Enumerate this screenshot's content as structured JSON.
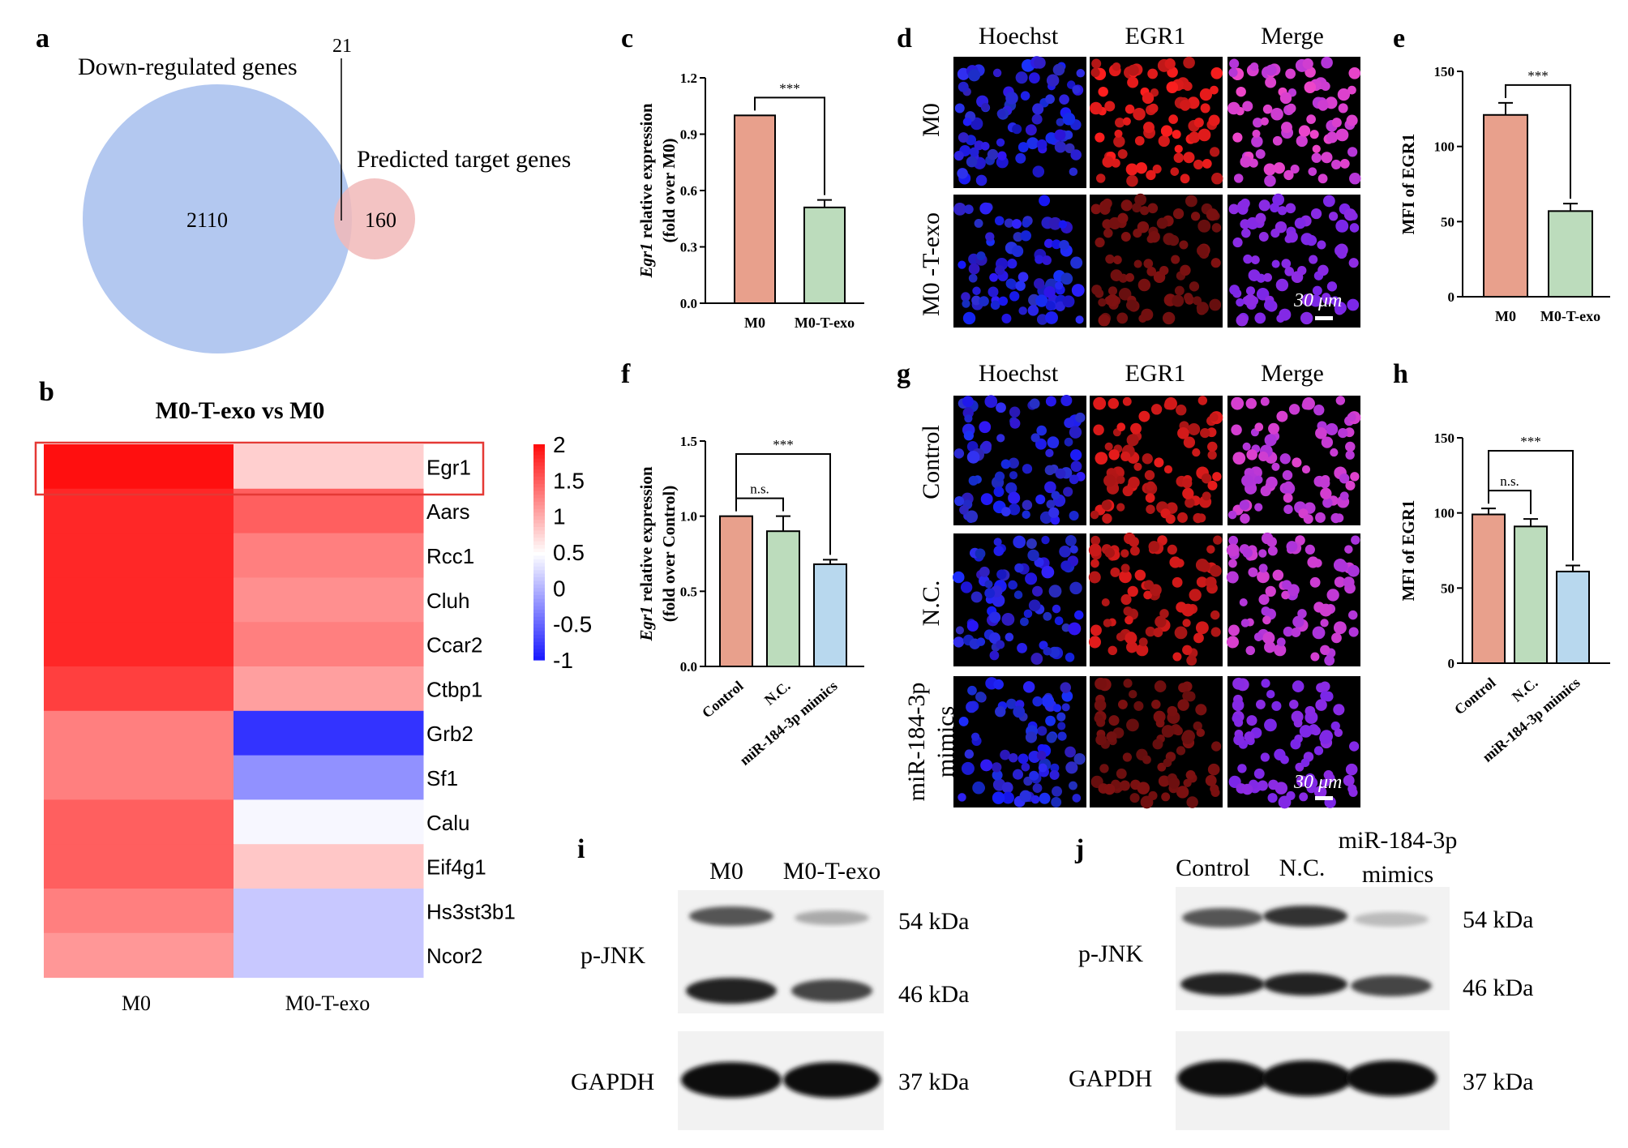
{
  "panel_letters": [
    "a",
    "b",
    "c",
    "d",
    "e",
    "f",
    "g",
    "h",
    "i",
    "j"
  ],
  "venn": {
    "left_label": "Down-regulated genes",
    "right_label": "Predicted target genes",
    "left_only": "2110",
    "overlap": "21",
    "right_only": "160",
    "left_color": "#b3c8f0",
    "right_color": "#f1b8b8"
  },
  "heatmap": {
    "title": "M0-T-exo vs M0",
    "columns": [
      "M0",
      "M0-T-exo"
    ],
    "genes": [
      "Egr1",
      "Aars",
      "Rcc1",
      "Cluh",
      "Ccar2",
      "Ctbp1",
      "Grb2",
      "Sf1",
      "Calu",
      "Eif4g1",
      "Hs3st3b1",
      "Ncor2"
    ],
    "values": [
      [
        2.0,
        0.8
      ],
      [
        1.85,
        1.5
      ],
      [
        1.85,
        1.3
      ],
      [
        1.85,
        1.2
      ],
      [
        1.85,
        1.3
      ],
      [
        1.7,
        1.1
      ],
      [
        1.3,
        -0.8
      ],
      [
        1.3,
        -0.2
      ],
      [
        1.5,
        0.45
      ],
      [
        1.5,
        0.85
      ],
      [
        1.3,
        0.15
      ],
      [
        1.15,
        0.15
      ]
    ],
    "highlight_gene": "Egr1",
    "scale_ticks": [
      "2",
      "1.5",
      "1",
      "0.5",
      "0",
      "-0.5",
      "-1"
    ],
    "scale_min": -1,
    "scale_max": 2,
    "highlight_color": "#e53935"
  },
  "micrographs": {
    "column_headers": [
      "Hoechst",
      "EGR1",
      "Merge"
    ],
    "d_rows": [
      "M0",
      "M0 -T-exo"
    ],
    "g_rows": [
      "Control",
      "N.C.",
      "miR-184-3p mimics"
    ],
    "scale_bar": "30 μm"
  },
  "blots": {
    "i_lanes": [
      "M0",
      "M0-T-exo"
    ],
    "j_lanes": [
      "Control",
      "N.C.",
      "miR-184-3p mimics"
    ],
    "protein_labels": [
      "p-JNK",
      "GAPDH"
    ],
    "size_labels": [
      "54 kDa",
      "46 kDa",
      "37 kDa"
    ]
  },
  "chart_data": [
    {
      "panel": "c",
      "type": "bar",
      "categories": [
        "M0",
        "M0-T-exo"
      ],
      "values": [
        1.0,
        0.51
      ],
      "errors": [
        0,
        0.04
      ],
      "colors": [
        "#e8a08c",
        "#bcdcbc"
      ],
      "ylabel": "Egr1 relative expression (fold over M0)",
      "ylim": [
        0,
        1.2
      ],
      "yticks": [
        "0.0",
        "0.3",
        "0.6",
        "0.9",
        "1.2"
      ],
      "significance": [
        {
          "pair": [
            0,
            1
          ],
          "label": "***"
        }
      ]
    },
    {
      "panel": "e",
      "type": "bar",
      "categories": [
        "M0",
        "M0-T-exo"
      ],
      "values": [
        121,
        57
      ],
      "errors": [
        8,
        5
      ],
      "colors": [
        "#e8a08c",
        "#bcdcbc"
      ],
      "ylabel": "MFI of EGR1",
      "ylim": [
        0,
        150
      ],
      "yticks": [
        "0",
        "50",
        "100",
        "150"
      ],
      "significance": [
        {
          "pair": [
            0,
            1
          ],
          "label": "***"
        }
      ]
    },
    {
      "panel": "f",
      "type": "bar",
      "categories": [
        "Control",
        "N.C.",
        "miR-184-3p mimics"
      ],
      "values": [
        1.0,
        0.9,
        0.68
      ],
      "errors": [
        0,
        0.1,
        0.03
      ],
      "colors": [
        "#e8a08c",
        "#bcdcbc",
        "#b8d8ee"
      ],
      "ylabel": "Egr1 relative expression (fold over Control)",
      "ylim": [
        0,
        1.5
      ],
      "yticks": [
        "0.0",
        "0.5",
        "1.0",
        "1.5"
      ],
      "significance": [
        {
          "pair": [
            0,
            1
          ],
          "label": "n.s."
        },
        {
          "pair": [
            0,
            2
          ],
          "label": "***"
        }
      ]
    },
    {
      "panel": "h",
      "type": "bar",
      "categories": [
        "Control",
        "N.C.",
        "miR-184-3p mimics"
      ],
      "values": [
        99,
        91,
        61
      ],
      "errors": [
        4,
        5,
        4
      ],
      "colors": [
        "#e8a08c",
        "#bcdcbc",
        "#b8d8ee"
      ],
      "ylabel": "MFI of EGR1",
      "ylim": [
        0,
        150
      ],
      "yticks": [
        "0",
        "50",
        "100",
        "150"
      ],
      "significance": [
        {
          "pair": [
            0,
            1
          ],
          "label": "n.s."
        },
        {
          "pair": [
            0,
            2
          ],
          "label": "***"
        }
      ]
    }
  ]
}
